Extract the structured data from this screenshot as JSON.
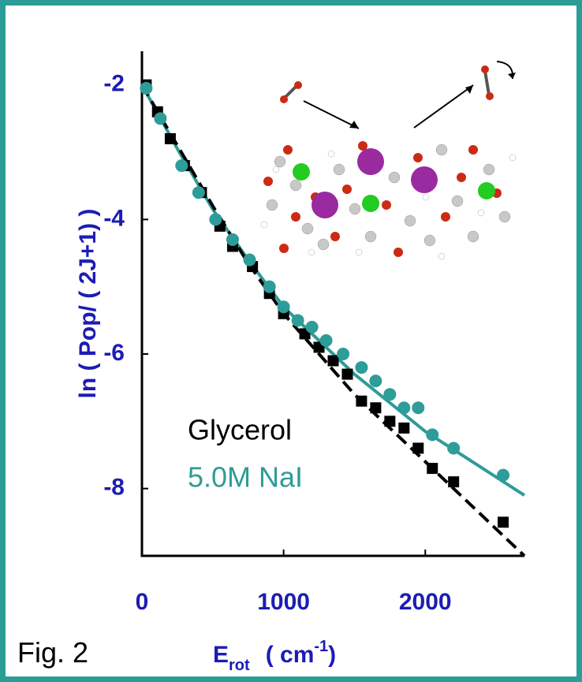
{
  "chart_data": {
    "type": "scatter",
    "figure_label": "Fig. 2",
    "ylabel": "ln ( Pop/ ( 2J+1) )",
    "xlabel": {
      "symbol": "E",
      "subscript": "rot",
      "unit": "( cm",
      "superscript": "-1",
      "close": ")"
    },
    "xlim": [
      0,
      2700
    ],
    "ylim": [
      -9,
      -1.5
    ],
    "xticks": [
      0,
      1000,
      2000
    ],
    "yticks": [
      -2,
      -4,
      -6,
      -8
    ],
    "series": [
      {
        "name": "Glycerol",
        "color": "#000000",
        "marker": "square",
        "x": [
          30,
          110,
          200,
          300,
          420,
          550,
          640,
          780,
          900,
          1000,
          1150,
          1250,
          1350,
          1450,
          1550,
          1650,
          1750,
          1850,
          1950,
          2050,
          2200,
          2550
        ],
        "values": [
          -2.0,
          -2.4,
          -2.8,
          -3.2,
          -3.6,
          -4.1,
          -4.4,
          -4.7,
          -5.1,
          -5.4,
          -5.7,
          -5.9,
          -6.1,
          -6.3,
          -6.7,
          -6.8,
          -7.0,
          -7.1,
          -7.4,
          -7.7,
          -7.9,
          -8.5
        ]
      },
      {
        "name": "5.0M NaI",
        "color": "#2e9c98",
        "marker": "circle",
        "x": [
          30,
          130,
          280,
          400,
          520,
          640,
          760,
          900,
          1000,
          1100,
          1200,
          1300,
          1420,
          1550,
          1650,
          1750,
          1850,
          1950,
          2050,
          2200,
          2550
        ],
        "values": [
          -2.05,
          -2.5,
          -3.2,
          -3.6,
          -4.0,
          -4.3,
          -4.6,
          -5.0,
          -5.3,
          -5.5,
          -5.6,
          -5.8,
          -6.0,
          -6.2,
          -6.4,
          -6.6,
          -6.8,
          -6.8,
          -7.2,
          -7.4,
          -7.8
        ]
      }
    ],
    "fits": [
      {
        "color": "#2e9c98",
        "dashed": false,
        "x": [
          0,
          250,
          500,
          750,
          1000,
          1500,
          2000,
          2700
        ],
        "values": [
          -2.0,
          -2.95,
          -3.85,
          -4.6,
          -5.3,
          -6.3,
          -7.15,
          -8.1
        ]
      },
      {
        "color": "#000000",
        "dashed": true,
        "x": [
          0,
          250,
          500,
          750,
          1000,
          1500,
          2000,
          2700
        ],
        "values": [
          -2.0,
          -2.9,
          -3.8,
          -4.65,
          -5.4,
          -6.6,
          -7.6,
          -9.0
        ]
      }
    ]
  }
}
